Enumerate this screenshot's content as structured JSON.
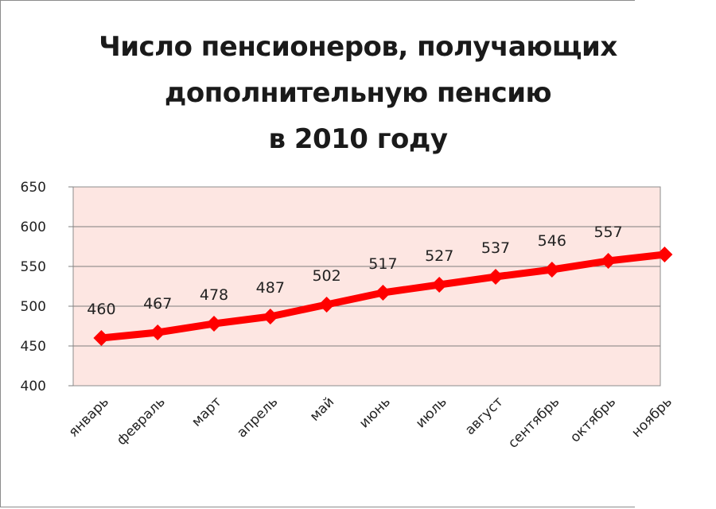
{
  "chart_data": {
    "type": "line",
    "title_lines": [
      "Число пенсионеров, получающих",
      "дополнительную пенсию",
      "в 2010 году"
    ],
    "categories": [
      "январь",
      "февраль",
      "март",
      "апрель",
      "май",
      "июнь",
      "июль",
      "август",
      "сентябрь",
      "октябрь",
      "ноябрь"
    ],
    "series": [
      {
        "values": [
          460,
          467,
          478,
          487,
          502,
          517,
          527,
          537,
          546,
          557,
          565
        ]
      }
    ],
    "data_labels_shown": [
      460,
      467,
      478,
      487,
      502,
      517,
      527,
      537,
      546,
      557
    ],
    "ylim": [
      400,
      650
    ],
    "yticks": [
      400,
      450,
      500,
      550,
      600,
      650
    ],
    "xlabel": "",
    "ylabel": "",
    "grid": true,
    "legend": "none",
    "colors": {
      "line": "#ff0000",
      "plot_background": "#fde6e2",
      "grid": "#7f7f7f"
    }
  }
}
